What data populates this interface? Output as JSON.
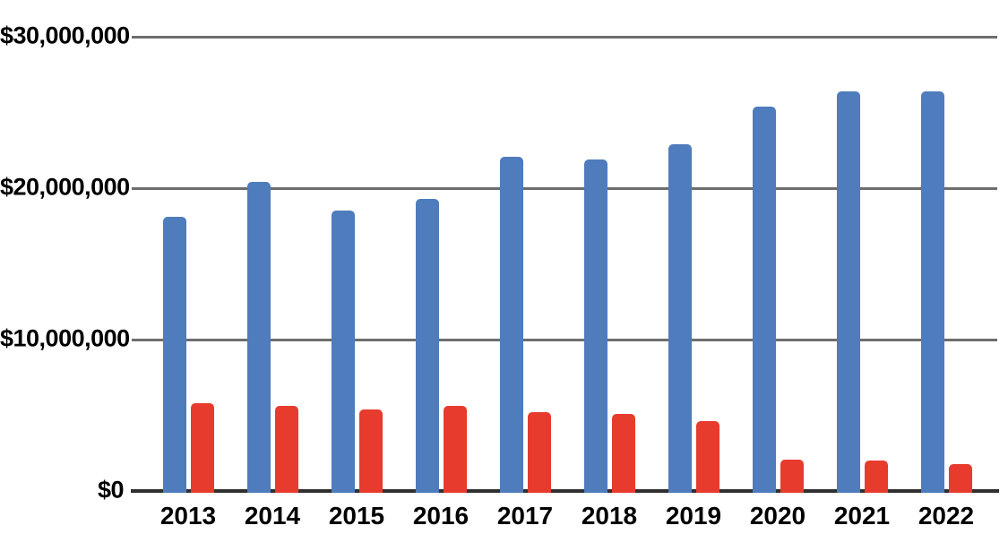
{
  "chart_data": {
    "type": "bar",
    "title": "",
    "xlabel": "",
    "ylabel": "",
    "categories": [
      "2013",
      "2014",
      "2015",
      "2016",
      "2017",
      "2018",
      "2019",
      "2020",
      "2021",
      "2022"
    ],
    "series": [
      {
        "name": "blue-series",
        "color": "#4e7cbd",
        "values": [
          18100000,
          20400000,
          18500000,
          19300000,
          22100000,
          21900000,
          22900000,
          25400000,
          26400000,
          26400000
        ]
      },
      {
        "name": "red-series",
        "color": "#e73b2d",
        "values": [
          5800000,
          5600000,
          5400000,
          5600000,
          5200000,
          5100000,
          4600000,
          2100000,
          2000000,
          1800000
        ]
      }
    ],
    "ylim": [
      0,
      30000000
    ],
    "yticks": [
      {
        "value": 0,
        "label": "$0"
      },
      {
        "value": 10000000,
        "label": "$10,000,000"
      },
      {
        "value": 20000000,
        "label": "$20,000,000"
      },
      {
        "value": 30000000,
        "label": "$30,000,000"
      }
    ],
    "grid": true,
    "legend": false,
    "legend_position": "none"
  },
  "colors": {
    "background": "#ffffff",
    "gridline": "#6e6e6e",
    "axis_line": "#2f2f2f",
    "label_text": "#000000",
    "blue_bar": "#4e7cbd",
    "red_bar": "#e73b2d"
  }
}
